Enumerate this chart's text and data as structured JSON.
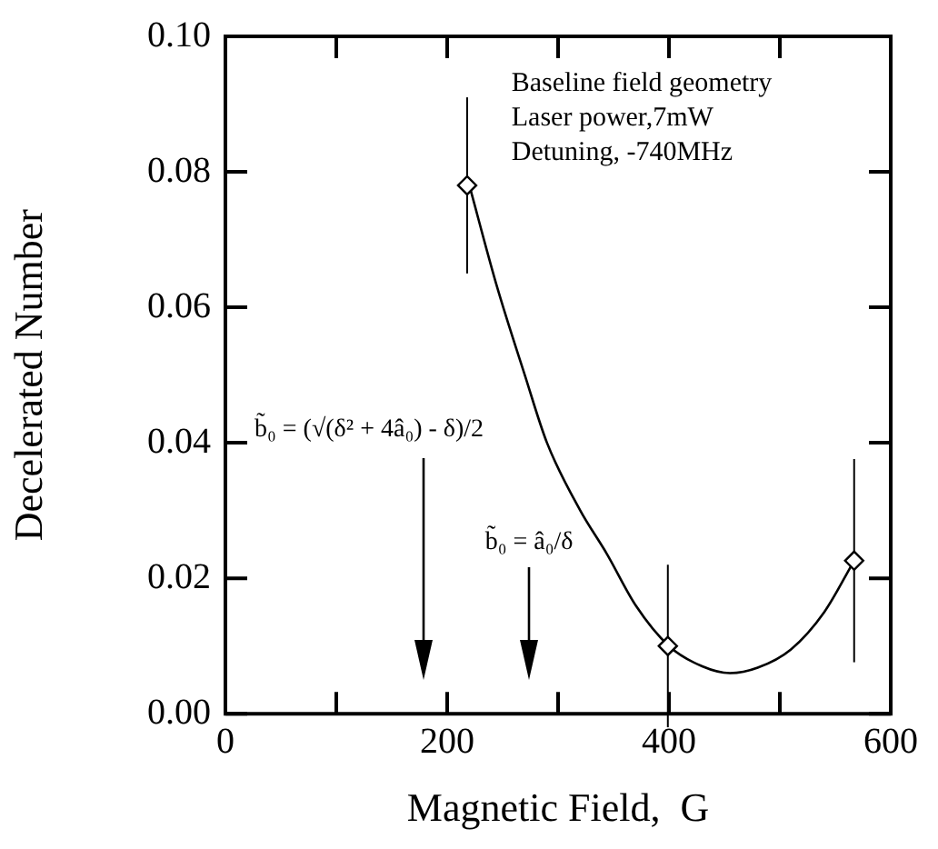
{
  "chart_data": {
    "type": "scatter",
    "xlabel": "Magnetic Field,  G",
    "ylabel": "Decelerated Number",
    "xlim": [
      0,
      600
    ],
    "xticks": [
      0,
      {
        "value": 100,
        "label": null
      },
      200,
      {
        "value": 300,
        "label": null
      },
      400,
      {
        "value": 500,
        "label": null
      },
      600
    ],
    "ylim": [
      0,
      0.1
    ],
    "yticks": [
      {
        "value": 0,
        "label": "0.00"
      },
      {
        "value": 0.02,
        "label": "0.02"
      },
      {
        "value": 0.04,
        "label": "0.04"
      },
      {
        "value": 0.06,
        "label": "0.06"
      },
      {
        "value": 0.08,
        "label": "0.08"
      },
      {
        "value": 0.1,
        "label": "0.10"
      }
    ],
    "grid": false,
    "legend": false,
    "marker": "diamond",
    "series": [
      {
        "color": "#000000",
        "x": [
          218,
          399,
          567
        ],
        "values": [
          0.078,
          0.01,
          0.0226
        ],
        "errors": [
          0.013,
          0.012,
          0.015
        ]
      },
      {
        "type": "line",
        "color": "#000000",
        "marker": "none",
        "x": [
          220,
          245,
          270,
          290,
          320,
          344,
          370,
          400,
          430,
          455,
          480,
          510,
          540,
          567
        ],
        "values": [
          0.078,
          0.063,
          0.05,
          0.04,
          0.03,
          0.0236,
          0.016,
          0.01,
          0.007,
          0.006,
          0.0068,
          0.0095,
          0.015,
          0.0226
        ]
      }
    ],
    "annotations": [
      "Baseline field geometry",
      "Laser power,7mW",
      "Detuning, -740MHz",
      "b̃₀ = (√(δ² + 4â₀) - δ)/2",
      "b̃₀ = â₀/δ"
    ]
  }
}
